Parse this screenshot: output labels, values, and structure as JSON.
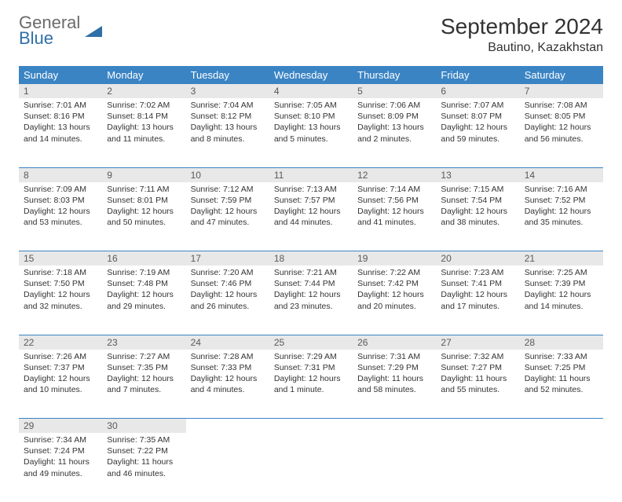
{
  "brand": {
    "general": "General",
    "blue": "Blue"
  },
  "title": "September 2024",
  "location": "Bautino, Kazakhstan",
  "header_bg": "#3b84c4",
  "day_headers": [
    "Sunday",
    "Monday",
    "Tuesday",
    "Wednesday",
    "Thursday",
    "Friday",
    "Saturday"
  ],
  "weeks": [
    [
      {
        "n": "1",
        "sr": "Sunrise: 7:01 AM",
        "ss": "Sunset: 8:16 PM",
        "d1": "Daylight: 13 hours",
        "d2": "and 14 minutes."
      },
      {
        "n": "2",
        "sr": "Sunrise: 7:02 AM",
        "ss": "Sunset: 8:14 PM",
        "d1": "Daylight: 13 hours",
        "d2": "and 11 minutes."
      },
      {
        "n": "3",
        "sr": "Sunrise: 7:04 AM",
        "ss": "Sunset: 8:12 PM",
        "d1": "Daylight: 13 hours",
        "d2": "and 8 minutes."
      },
      {
        "n": "4",
        "sr": "Sunrise: 7:05 AM",
        "ss": "Sunset: 8:10 PM",
        "d1": "Daylight: 13 hours",
        "d2": "and 5 minutes."
      },
      {
        "n": "5",
        "sr": "Sunrise: 7:06 AM",
        "ss": "Sunset: 8:09 PM",
        "d1": "Daylight: 13 hours",
        "d2": "and 2 minutes."
      },
      {
        "n": "6",
        "sr": "Sunrise: 7:07 AM",
        "ss": "Sunset: 8:07 PM",
        "d1": "Daylight: 12 hours",
        "d2": "and 59 minutes."
      },
      {
        "n": "7",
        "sr": "Sunrise: 7:08 AM",
        "ss": "Sunset: 8:05 PM",
        "d1": "Daylight: 12 hours",
        "d2": "and 56 minutes."
      }
    ],
    [
      {
        "n": "8",
        "sr": "Sunrise: 7:09 AM",
        "ss": "Sunset: 8:03 PM",
        "d1": "Daylight: 12 hours",
        "d2": "and 53 minutes."
      },
      {
        "n": "9",
        "sr": "Sunrise: 7:11 AM",
        "ss": "Sunset: 8:01 PM",
        "d1": "Daylight: 12 hours",
        "d2": "and 50 minutes."
      },
      {
        "n": "10",
        "sr": "Sunrise: 7:12 AM",
        "ss": "Sunset: 7:59 PM",
        "d1": "Daylight: 12 hours",
        "d2": "and 47 minutes."
      },
      {
        "n": "11",
        "sr": "Sunrise: 7:13 AM",
        "ss": "Sunset: 7:57 PM",
        "d1": "Daylight: 12 hours",
        "d2": "and 44 minutes."
      },
      {
        "n": "12",
        "sr": "Sunrise: 7:14 AM",
        "ss": "Sunset: 7:56 PM",
        "d1": "Daylight: 12 hours",
        "d2": "and 41 minutes."
      },
      {
        "n": "13",
        "sr": "Sunrise: 7:15 AM",
        "ss": "Sunset: 7:54 PM",
        "d1": "Daylight: 12 hours",
        "d2": "and 38 minutes."
      },
      {
        "n": "14",
        "sr": "Sunrise: 7:16 AM",
        "ss": "Sunset: 7:52 PM",
        "d1": "Daylight: 12 hours",
        "d2": "and 35 minutes."
      }
    ],
    [
      {
        "n": "15",
        "sr": "Sunrise: 7:18 AM",
        "ss": "Sunset: 7:50 PM",
        "d1": "Daylight: 12 hours",
        "d2": "and 32 minutes."
      },
      {
        "n": "16",
        "sr": "Sunrise: 7:19 AM",
        "ss": "Sunset: 7:48 PM",
        "d1": "Daylight: 12 hours",
        "d2": "and 29 minutes."
      },
      {
        "n": "17",
        "sr": "Sunrise: 7:20 AM",
        "ss": "Sunset: 7:46 PM",
        "d1": "Daylight: 12 hours",
        "d2": "and 26 minutes."
      },
      {
        "n": "18",
        "sr": "Sunrise: 7:21 AM",
        "ss": "Sunset: 7:44 PM",
        "d1": "Daylight: 12 hours",
        "d2": "and 23 minutes."
      },
      {
        "n": "19",
        "sr": "Sunrise: 7:22 AM",
        "ss": "Sunset: 7:42 PM",
        "d1": "Daylight: 12 hours",
        "d2": "and 20 minutes."
      },
      {
        "n": "20",
        "sr": "Sunrise: 7:23 AM",
        "ss": "Sunset: 7:41 PM",
        "d1": "Daylight: 12 hours",
        "d2": "and 17 minutes."
      },
      {
        "n": "21",
        "sr": "Sunrise: 7:25 AM",
        "ss": "Sunset: 7:39 PM",
        "d1": "Daylight: 12 hours",
        "d2": "and 14 minutes."
      }
    ],
    [
      {
        "n": "22",
        "sr": "Sunrise: 7:26 AM",
        "ss": "Sunset: 7:37 PM",
        "d1": "Daylight: 12 hours",
        "d2": "and 10 minutes."
      },
      {
        "n": "23",
        "sr": "Sunrise: 7:27 AM",
        "ss": "Sunset: 7:35 PM",
        "d1": "Daylight: 12 hours",
        "d2": "and 7 minutes."
      },
      {
        "n": "24",
        "sr": "Sunrise: 7:28 AM",
        "ss": "Sunset: 7:33 PM",
        "d1": "Daylight: 12 hours",
        "d2": "and 4 minutes."
      },
      {
        "n": "25",
        "sr": "Sunrise: 7:29 AM",
        "ss": "Sunset: 7:31 PM",
        "d1": "Daylight: 12 hours",
        "d2": "and 1 minute."
      },
      {
        "n": "26",
        "sr": "Sunrise: 7:31 AM",
        "ss": "Sunset: 7:29 PM",
        "d1": "Daylight: 11 hours",
        "d2": "and 58 minutes."
      },
      {
        "n": "27",
        "sr": "Sunrise: 7:32 AM",
        "ss": "Sunset: 7:27 PM",
        "d1": "Daylight: 11 hours",
        "d2": "and 55 minutes."
      },
      {
        "n": "28",
        "sr": "Sunrise: 7:33 AM",
        "ss": "Sunset: 7:25 PM",
        "d1": "Daylight: 11 hours",
        "d2": "and 52 minutes."
      }
    ],
    [
      {
        "n": "29",
        "sr": "Sunrise: 7:34 AM",
        "ss": "Sunset: 7:24 PM",
        "d1": "Daylight: 11 hours",
        "d2": "and 49 minutes."
      },
      {
        "n": "30",
        "sr": "Sunrise: 7:35 AM",
        "ss": "Sunset: 7:22 PM",
        "d1": "Daylight: 11 hours",
        "d2": "and 46 minutes."
      },
      null,
      null,
      null,
      null,
      null
    ]
  ]
}
